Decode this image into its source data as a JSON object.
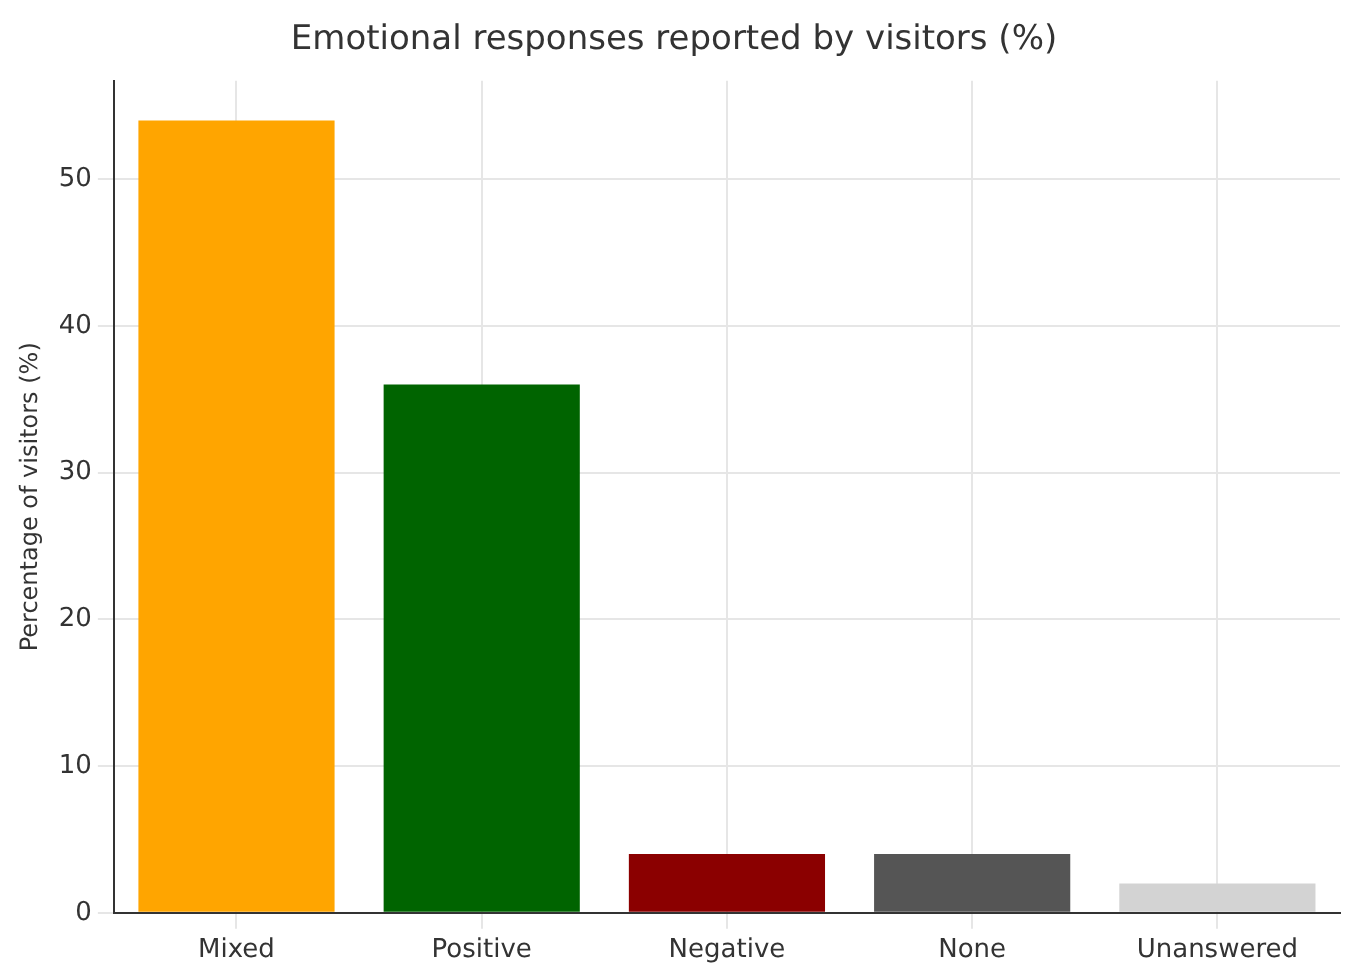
{
  "chart_data": {
    "type": "bar",
    "title": "Emotional responses reported by visitors (%)",
    "ylabel": "Percentage of visitors (%)",
    "categories": [
      "Mixed",
      "Positive",
      "Negative",
      "None",
      "Unanswered"
    ],
    "values": [
      54,
      36,
      4,
      4,
      2
    ],
    "colors": [
      "#ffa500",
      "#006400",
      "#8b0000",
      "#555555",
      "#d3d3d3"
    ],
    "ylim": [
      0,
      56.7
    ],
    "yticks": [
      0,
      10,
      20,
      30,
      40,
      50
    ],
    "grid": true
  }
}
